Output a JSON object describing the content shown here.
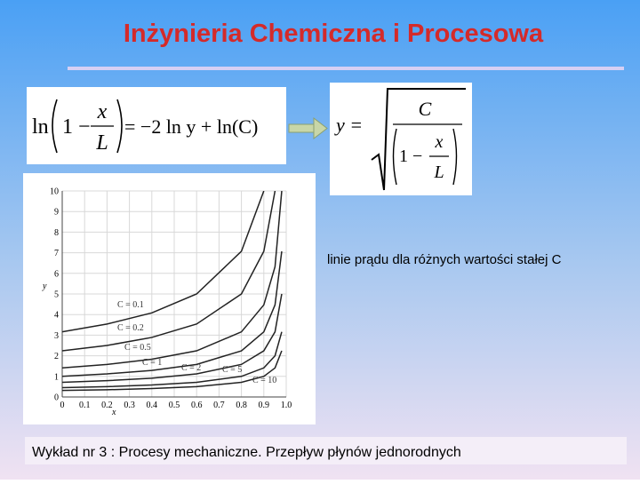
{
  "title": "Inżynieria Chemiczna i Procesowa",
  "equation1": {
    "fn": "ln",
    "one": "1 −",
    "num": "x",
    "den": "L",
    "rhs": "= −2 ln y + ln(C)"
  },
  "equation2": {
    "lhs": "y =",
    "num": "C",
    "one": "1 −",
    "inner_num": "x",
    "inner_den": "L"
  },
  "caption": "linie prądu dla różnych wartości stałej C",
  "footer": "Wykład nr 3  : Procesy mechaniczne.  Przepływ płynów jednorodnych",
  "chart_data": {
    "type": "line",
    "x_label": "x",
    "y_label": "y",
    "x": [
      0,
      0.2,
      0.4,
      0.6,
      0.8,
      0.9,
      0.95,
      0.98
    ],
    "series": [
      {
        "name": "C = 0.1",
        "color": "#222222",
        "values": [
          3.16,
          3.54,
          4.08,
          5.0,
          7.07,
          10.0,
          null,
          null
        ]
      },
      {
        "name": "C = 0.2",
        "color": "#222222",
        "values": [
          2.24,
          2.5,
          2.89,
          3.54,
          5.0,
          7.07,
          10.0,
          null
        ]
      },
      {
        "name": "C = 0.5",
        "color": "#222222",
        "values": [
          1.41,
          1.58,
          1.83,
          2.24,
          3.16,
          4.47,
          6.32,
          10.0
        ]
      },
      {
        "name": "C = 1",
        "color": "#222222",
        "values": [
          1,
          1.12,
          1.29,
          1.58,
          2.24,
          3.16,
          4.47,
          7.07
        ]
      },
      {
        "name": "C = 2",
        "color": "#222222",
        "values": [
          0.71,
          0.79,
          0.91,
          1.12,
          1.58,
          2.24,
          3.16,
          5.0
        ]
      },
      {
        "name": "C = 5",
        "color": "#222222",
        "values": [
          0.45,
          0.5,
          0.58,
          0.71,
          1.0,
          1.41,
          2.0,
          3.16
        ]
      },
      {
        "name": "C = 10",
        "color": "#222222",
        "values": [
          0.32,
          0.35,
          0.41,
          0.5,
          0.71,
          1.0,
          1.41,
          2.24
        ]
      }
    ],
    "xlim": [
      0,
      1
    ],
    "xticks": [
      0,
      0.1,
      0.2,
      0.3,
      0.4,
      0.5,
      0.6,
      0.7,
      0.8,
      0.9,
      {
        "value": 1,
        "label": "1.0"
      }
    ],
    "ylim": [
      0,
      10
    ],
    "yticks": [
      0,
      1,
      2,
      3,
      4,
      5,
      6,
      7,
      8,
      9,
      10
    ],
    "grid": true
  }
}
